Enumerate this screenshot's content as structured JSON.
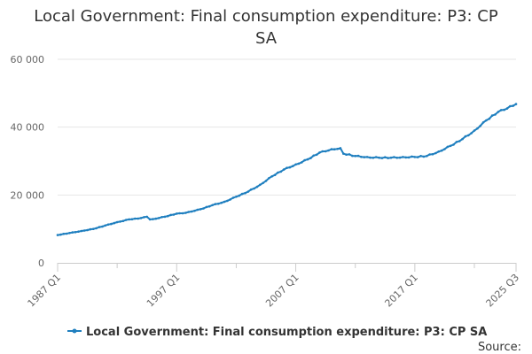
{
  "chart_data": {
    "type": "line",
    "title": "Local Government: Final consumption expenditure: P3: CP SA",
    "xlabel": "",
    "ylabel": "",
    "x_range": [
      "1987 Q1",
      "2025 Q3"
    ],
    "x_tick_labels": [
      "1987 Q1",
      "1997 Q1",
      "2007 Q1",
      "2017 Q1",
      "2025 Q3"
    ],
    "y_tick_labels": [
      "0",
      "20 000",
      "40 000",
      "60 000"
    ],
    "y_ticks": [
      0,
      20000,
      40000,
      60000
    ],
    "ylim": [
      0,
      60000
    ],
    "grid": "horizontal",
    "series": [
      {
        "name": "Local Government: Final consumption expenditure: P3: CP SA",
        "color": "#1f7fbf",
        "points": [
          [
            "1987 Q1",
            8200
          ],
          [
            "1988 Q1",
            8800
          ],
          [
            "1989 Q1",
            9400
          ],
          [
            "1990 Q1",
            10000
          ],
          [
            "1991 Q1",
            11000
          ],
          [
            "1992 Q1",
            12000
          ],
          [
            "1993 Q1",
            12800
          ],
          [
            "1994 Q1",
            13200
          ],
          [
            "1994 Q3",
            13600
          ],
          [
            "1994 Q4",
            12800
          ],
          [
            "1995 Q1",
            12900
          ],
          [
            "1996 Q1",
            13600
          ],
          [
            "1997 Q1",
            14500
          ],
          [
            "1997 Q3",
            14600
          ],
          [
            "1998 Q1",
            15000
          ],
          [
            "1999 Q1",
            15800
          ],
          [
            "2000 Q1",
            17000
          ],
          [
            "2001 Q1",
            18000
          ],
          [
            "2002 Q1",
            19500
          ],
          [
            "2003 Q1",
            21000
          ],
          [
            "2004 Q1",
            23000
          ],
          [
            "2005 Q1",
            25500
          ],
          [
            "2006 Q1",
            27500
          ],
          [
            "2007 Q1",
            29000
          ],
          [
            "2008 Q1",
            30500
          ],
          [
            "2009 Q1",
            32500
          ],
          [
            "2010 Q1",
            33500
          ],
          [
            "2010 Q4",
            33800
          ],
          [
            "2011 Q1",
            32200
          ],
          [
            "2012 Q1",
            31500
          ],
          [
            "2013 Q1",
            31200
          ],
          [
            "2014 Q1",
            31000
          ],
          [
            "2015 Q1",
            31000
          ],
          [
            "2016 Q1",
            31200
          ],
          [
            "2017 Q1",
            31200
          ],
          [
            "2018 Q1",
            31500
          ],
          [
            "2019 Q1",
            32800
          ],
          [
            "2020 Q1",
            34500
          ],
          [
            "2021 Q1",
            36500
          ],
          [
            "2022 Q1",
            39000
          ],
          [
            "2023 Q1",
            42000
          ],
          [
            "2024 Q1",
            44500
          ],
          [
            "2025 Q3",
            46800
          ]
        ]
      }
    ],
    "legend": {
      "position": "bottom",
      "entries": [
        "Local Government: Final consumption expenditure: P3: CP SA"
      ]
    }
  },
  "source_label": "Source:"
}
